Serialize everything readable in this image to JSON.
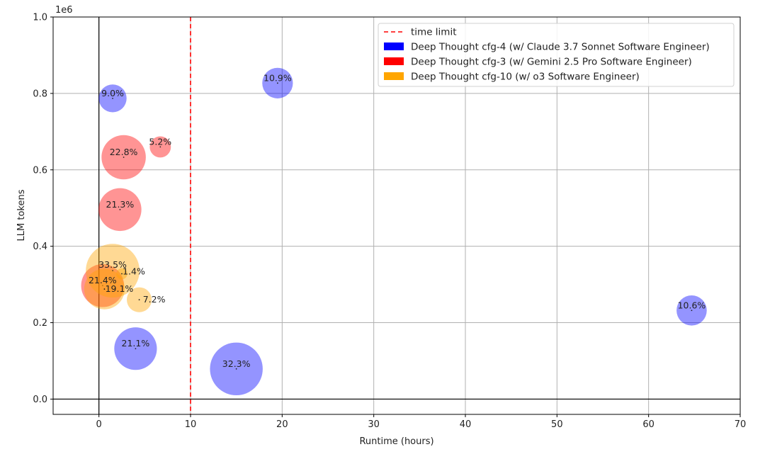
{
  "chart_data": {
    "type": "scatter",
    "xlabel": "Runtime (hours)",
    "ylabel": "LLM tokens",
    "y_offset_label": "1e6",
    "xlim": [
      -5,
      70
    ],
    "ylim": [
      -0.04,
      1.0
    ],
    "xticks": [
      0,
      10,
      20,
      30,
      40,
      50,
      60,
      70
    ],
    "yticks": [
      0.0,
      0.2,
      0.4,
      0.6,
      0.8,
      1.0
    ],
    "xtick_labels": [
      "0",
      "10",
      "20",
      "30",
      "40",
      "50",
      "60",
      "70"
    ],
    "ytick_labels": [
      "0.0",
      "0.2",
      "0.4",
      "0.6",
      "0.8",
      "1.0"
    ],
    "grid": true,
    "legend_position": "top-right",
    "reference_line": {
      "x": 10,
      "label": "time limit",
      "color": "#ff0000",
      "style": "dashed"
    },
    "series": [
      {
        "name": "Deep Thought cfg-4 (w/ Claude 3.7 Sonnet Software Engineer)",
        "color": "#0000ff",
        "points": [
          {
            "x": 1.5,
            "y": 0.787,
            "label": "9.0%",
            "size": 9.0
          },
          {
            "x": 19.5,
            "y": 0.827,
            "label": "10.9%",
            "size": 10.9
          },
          {
            "x": 4.0,
            "y": 0.132,
            "label": "21.1%",
            "size": 21.1
          },
          {
            "x": 15.0,
            "y": 0.079,
            "label": "32.3%",
            "size": 32.3
          },
          {
            "x": 64.7,
            "y": 0.232,
            "label": "10.6%",
            "size": 10.6
          }
        ]
      },
      {
        "name": "Deep Thought cfg-3 (w/ Gemini 2.5 Pro Software Engineer)",
        "color": "#ff0000",
        "points": [
          {
            "x": 6.7,
            "y": 0.66,
            "label": "5.2%",
            "size": 5.2
          },
          {
            "x": 2.7,
            "y": 0.633,
            "label": "22.8%",
            "size": 22.8
          },
          {
            "x": 2.3,
            "y": 0.496,
            "label": "21.3%",
            "size": 21.3
          },
          {
            "x": 0.4,
            "y": 0.297,
            "label": "21.4%",
            "size": 21.4
          }
        ]
      },
      {
        "name": "Deep Thought cfg-10 (w/ o3 Software Engineer)",
        "color": "#ffa500",
        "points": [
          {
            "x": 1.5,
            "y": 0.336,
            "label": "33.5%",
            "size": 33.5
          },
          {
            "x": 2.5,
            "y": 0.328,
            "label": "1.4%",
            "size": 1.4
          },
          {
            "x": 0.6,
            "y": 0.288,
            "label": "19.1%",
            "size": 19.1
          },
          {
            "x": 4.4,
            "y": 0.26,
            "label": "7.2%",
            "size": 7.2
          }
        ]
      }
    ]
  }
}
